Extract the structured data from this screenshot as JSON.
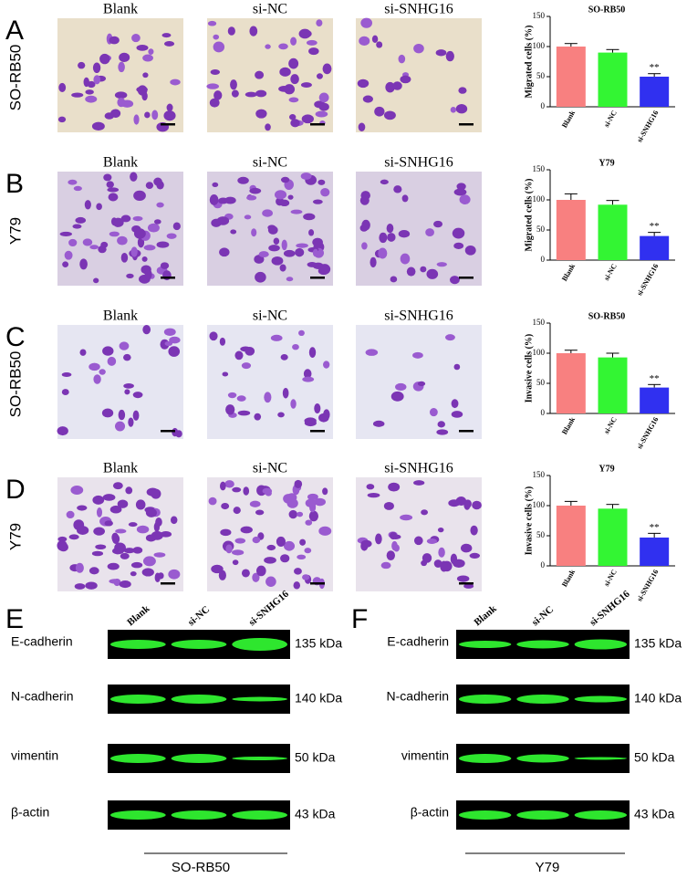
{
  "panels": [
    {
      "letter": "A",
      "cell_line": "SO-RB50",
      "columns": [
        "Blank",
        "si-NC",
        "si-SNHG16"
      ]
    },
    {
      "letter": "B",
      "cell_line": "Y79",
      "columns": [
        "Blank",
        "si-NC",
        "si-SNHG16"
      ]
    },
    {
      "letter": "C",
      "cell_line": "SO-RB50",
      "columns": [
        "Blank",
        "si-NC",
        "si-SNHG16"
      ]
    },
    {
      "letter": "D",
      "cell_line": "Y79",
      "columns": [
        "Blank",
        "si-NC",
        "si-SNHG16"
      ]
    }
  ],
  "chart_data": [
    {
      "type": "bar",
      "title": "SO-RB50",
      "y_label": "Migrated cells (%)",
      "categories": [
        "Blank",
        "si-NC",
        "si-SNHG16"
      ],
      "values": [
        100,
        90,
        50
      ],
      "errors": [
        5,
        5,
        5
      ],
      "colors": [
        "#f88080",
        "#33f533",
        "#3030f0"
      ],
      "ylim": [
        0,
        150
      ],
      "yticks": [
        0,
        50,
        100,
        150
      ],
      "annotations": [
        {
          "text": "**",
          "at": "si-SNHG16"
        }
      ]
    },
    {
      "type": "bar",
      "title": "Y79",
      "y_label": "Migrated cells (%)",
      "categories": [
        "Blank",
        "si-NC",
        "si-SNHG16"
      ],
      "values": [
        100,
        92,
        40
      ],
      "errors": [
        10,
        7,
        6
      ],
      "colors": [
        "#f88080",
        "#33f533",
        "#3030f0"
      ],
      "ylim": [
        0,
        150
      ],
      "yticks": [
        0,
        50,
        100,
        150
      ],
      "annotations": [
        {
          "text": "**",
          "at": "si-SNHG16"
        }
      ]
    },
    {
      "type": "bar",
      "title": "SO-RB50",
      "y_label": "Invasive cells (%)",
      "categories": [
        "Blank",
        "si-NC",
        "si-SNHG16"
      ],
      "values": [
        100,
        93,
        43
      ],
      "errors": [
        5,
        7,
        5
      ],
      "colors": [
        "#f88080",
        "#33f533",
        "#3030f0"
      ],
      "ylim": [
        0,
        150
      ],
      "yticks": [
        0,
        50,
        100,
        150
      ],
      "annotations": [
        {
          "text": "**",
          "at": "si-SNHG16"
        }
      ]
    },
    {
      "type": "bar",
      "title": "Y79",
      "y_label": "Invasive cells (%)",
      "categories": [
        "Blank",
        "si-NC",
        "si-SNHG16"
      ],
      "values": [
        100,
        95,
        47
      ],
      "errors": [
        7,
        7,
        7
      ],
      "colors": [
        "#f88080",
        "#33f533",
        "#3030f0"
      ],
      "ylim": [
        0,
        150
      ],
      "yticks": [
        0,
        50,
        100,
        150
      ],
      "annotations": [
        {
          "text": "**",
          "at": "si-SNHG16"
        }
      ]
    }
  ],
  "blots": [
    {
      "letter": "E",
      "cell_line": "SO-RB50",
      "lanes": [
        "Blank",
        "si-NC",
        "si-SNHG16"
      ],
      "proteins": [
        {
          "name": "E-cadherin",
          "size": "135 kDa"
        },
        {
          "name": "N-cadherin",
          "size": "140 kDa"
        },
        {
          "name": "vimentin",
          "size": "50 kDa"
        },
        {
          "name": "β-actin",
          "size": "43 kDa"
        }
      ]
    },
    {
      "letter": "F",
      "cell_line": "Y79",
      "lanes": [
        "Blank",
        "si-NC",
        "si-SNHG16"
      ],
      "proteins": [
        {
          "name": "E-cadherin",
          "size": "135 kDa"
        },
        {
          "name": "N-cadherin",
          "size": "140 kDa"
        },
        {
          "name": "vimentin",
          "size": "50 kDa"
        },
        {
          "name": "β-actin",
          "size": "43 kDa"
        }
      ]
    }
  ]
}
